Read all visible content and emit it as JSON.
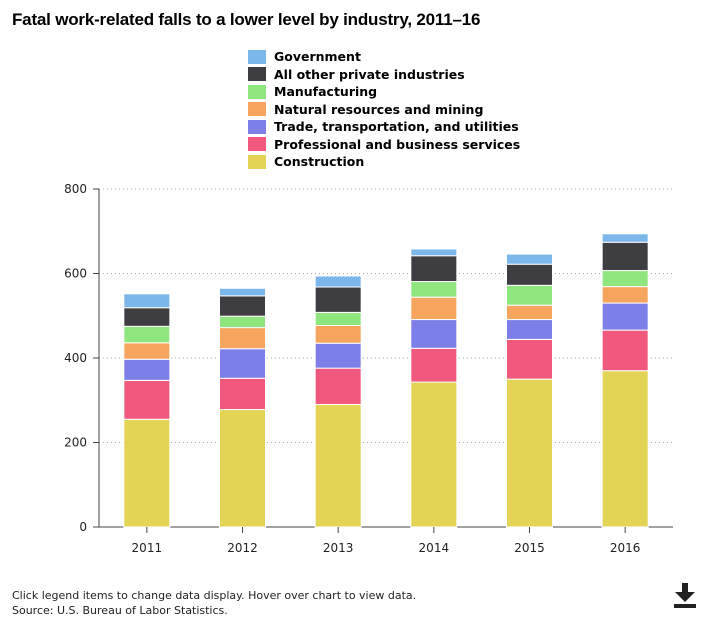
{
  "page": {
    "title": "Fatal work-related falls to a lower level by industry, 2011–16",
    "footer_line1": "Click legend items to change data display. Hover over chart to view data.",
    "footer_line2": "Source: U.S. Bureau of Labor Statistics.",
    "download_icon": "download-icon"
  },
  "chart_data": {
    "type": "bar",
    "stacked": true,
    "categories": [
      "2011",
      "2012",
      "2013",
      "2014",
      "2015",
      "2016"
    ],
    "ylim": [
      0,
      800
    ],
    "yticks": [
      0,
      200,
      400,
      600,
      800
    ],
    "grid": true,
    "legend_position": "top",
    "series": [
      {
        "name": "Construction",
        "color": "#e3d455",
        "values": [
          255,
          278,
          290,
          343,
          350,
          370
        ]
      },
      {
        "name": "Professional and business services",
        "color": "#f0587e",
        "values": [
          92,
          74,
          86,
          80,
          94,
          96
        ]
      },
      {
        "name": "Trade, transportation, and utilities",
        "color": "#7e7ee8",
        "values": [
          50,
          70,
          59,
          68,
          47,
          64
        ]
      },
      {
        "name": "Natural resources and mining",
        "color": "#f6a55e",
        "values": [
          39,
          50,
          42,
          53,
          34,
          39
        ]
      },
      {
        "name": "Manufacturing",
        "color": "#8fe67e",
        "values": [
          39,
          27,
          31,
          37,
          47,
          38
        ]
      },
      {
        "name": "All other private industries",
        "color": "#3d3d42",
        "values": [
          44,
          48,
          60,
          61,
          50,
          67
        ]
      },
      {
        "name": "Government",
        "color": "#7cb7ec",
        "values": [
          33,
          18,
          26,
          16,
          24,
          20
        ]
      }
    ],
    "legend_order": [
      "Government",
      "All other private industries",
      "Manufacturing",
      "Natural resources and mining",
      "Trade, transportation, and utilities",
      "Professional and business services",
      "Construction"
    ]
  }
}
